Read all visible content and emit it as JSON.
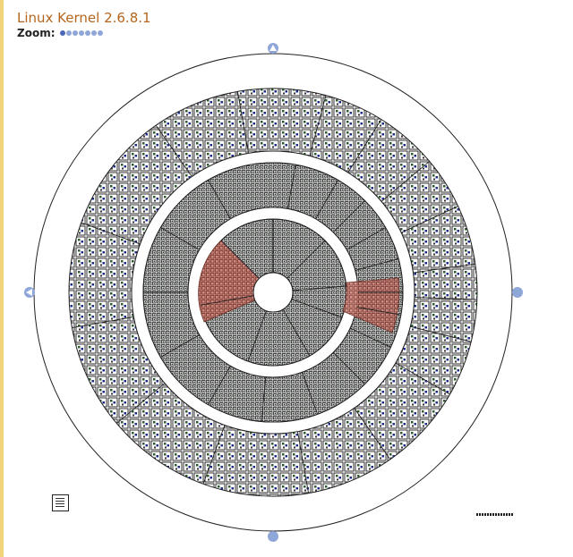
{
  "header": {
    "title": "Linux Kernel 2.6.8.1",
    "zoom_label": "Zoom:",
    "zoom_levels": 7,
    "zoom_selected": 1
  },
  "navigation": {
    "up_icon": "arrow-up-icon",
    "left_icon": "arrow-left-icon",
    "right_icon": "dot-icon",
    "down_icon": "dot-icon"
  },
  "visualization": {
    "rings": 4,
    "highlight_color": "#c8665a",
    "item_color": "#1f3f1f",
    "accent_color": "#1c2a8c"
  }
}
